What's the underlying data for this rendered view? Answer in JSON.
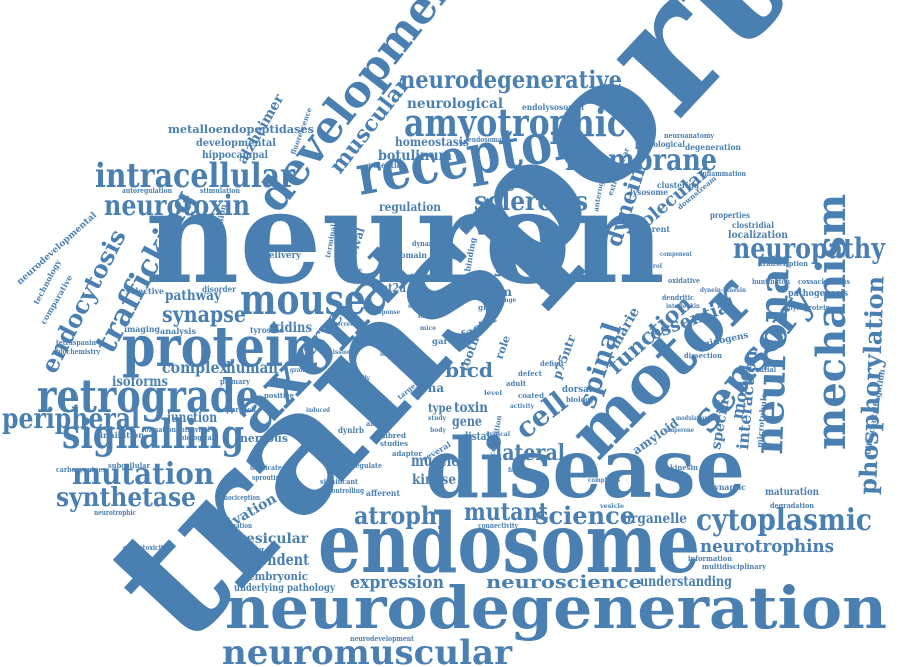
{
  "cloud": {
    "color": "#4a7fb1",
    "words": [
      {
        "text": "transport",
        "rank": 1
      },
      {
        "text": "neuron",
        "rank": 2
      },
      {
        "text": "disease",
        "rank": 3
      },
      {
        "text": "endosome",
        "rank": 4
      },
      {
        "text": "neurodegeneration",
        "rank": 5
      },
      {
        "text": "axonal",
        "rank": 6
      },
      {
        "text": "receptor",
        "rank": 7
      },
      {
        "text": "motor",
        "rank": 8
      },
      {
        "text": "development",
        "rank": 9
      },
      {
        "text": "protein",
        "rank": 10
      },
      {
        "text": "mouse",
        "rank": 11
      },
      {
        "text": "retrograde",
        "rank": 12
      },
      {
        "text": "amyotrophic",
        "rank": 13
      },
      {
        "text": "neuronal",
        "rank": 14
      },
      {
        "text": "mechanism",
        "rank": 15
      },
      {
        "text": "sensory",
        "rank": 16
      },
      {
        "text": "signalling",
        "rank": 17
      },
      {
        "text": "intracellular",
        "rank": 18
      },
      {
        "text": "neuromuscular",
        "rank": 19
      },
      {
        "text": "membrane",
        "rank": 20
      },
      {
        "text": "cytoplasmic",
        "rank": 21
      },
      {
        "text": "neuropathy",
        "rank": 22
      },
      {
        "text": "mutation",
        "rank": 23
      },
      {
        "text": "peripheral",
        "rank": 24
      },
      {
        "text": "neurotoxin",
        "rank": 25
      },
      {
        "text": "phosphorylation",
        "rank": 26
      },
      {
        "text": "trafficking",
        "rank": 27
      },
      {
        "text": "synthetase",
        "rank": 28
      },
      {
        "text": "neurodegenerative",
        "rank": 29
      },
      {
        "text": "sclerosis",
        "rank": 30
      },
      {
        "text": "endocytosis",
        "rank": 31
      },
      {
        "text": "muscular",
        "rank": 32
      },
      {
        "text": "spinal",
        "rank": 33
      },
      {
        "text": "dynein",
        "rank": 34
      },
      {
        "text": "cell",
        "rank": 35
      },
      {
        "text": "science",
        "rank": 36
      },
      {
        "text": "atrophy",
        "rank": 37
      },
      {
        "text": "mutant",
        "rank": 38
      },
      {
        "text": "neurotrophins",
        "rank": 39
      },
      {
        "text": "expression",
        "rank": 40
      },
      {
        "text": "neuroscience",
        "rank": 41
      },
      {
        "text": "function",
        "rank": 42
      },
      {
        "text": "synapse",
        "rank": 43
      },
      {
        "text": "lateral",
        "rank": 44
      },
      {
        "text": "dependent",
        "rank": 45
      },
      {
        "text": "nerve",
        "rank": 46
      },
      {
        "text": "activation",
        "rank": 47
      },
      {
        "text": "vesicular",
        "rank": 48
      },
      {
        "text": "molecular",
        "rank": 49
      },
      {
        "text": "essential",
        "rank": 50
      },
      {
        "text": "specific",
        "rank": 51
      },
      {
        "text": "model",
        "rank": 52
      },
      {
        "text": "interaction",
        "rank": 53
      },
      {
        "text": "complex",
        "rank": 54
      },
      {
        "text": "human",
        "rank": 55
      },
      {
        "text": "bicd",
        "rank": 56
      },
      {
        "text": "neurological",
        "rank": 57
      },
      {
        "text": "botulinum",
        "rank": 58
      },
      {
        "text": "homeostasis",
        "rank": 59
      },
      {
        "text": "understanding",
        "rank": 60
      },
      {
        "text": "organelle",
        "rank": 61
      },
      {
        "text": "muscle",
        "rank": 62
      },
      {
        "text": "toxin",
        "rank": 63
      },
      {
        "text": "gene",
        "rank": 64
      },
      {
        "text": "kinase",
        "rank": 65
      },
      {
        "text": "ganglion",
        "rank": 66
      },
      {
        "text": "regulation",
        "rank": 67
      },
      {
        "text": "pathway",
        "rank": 68
      },
      {
        "text": "isoforms",
        "rank": 69
      },
      {
        "text": "junction",
        "rank": 70
      },
      {
        "text": "alzheimer",
        "rank": 71
      },
      {
        "text": "kidins",
        "rank": 72
      },
      {
        "text": "system",
        "rank": 73
      },
      {
        "text": "factor",
        "rank": 74
      },
      {
        "text": "growth",
        "rank": 75
      },
      {
        "text": "cmt2d",
        "rank": 76
      },
      {
        "text": "survival",
        "rank": 77
      },
      {
        "text": "amyloid",
        "rank": 78
      },
      {
        "text": "marie",
        "rank": 79
      },
      {
        "text": "tooth",
        "rank": 80
      },
      {
        "text": "p75ntr",
        "rank": 81
      },
      {
        "text": "trna",
        "rank": 82
      },
      {
        "text": "nervous",
        "rank": 83
      },
      {
        "text": "embryonic",
        "rank": 84
      },
      {
        "text": "underlying",
        "rank": 85
      },
      {
        "text": "pathology",
        "rank": 86
      },
      {
        "text": "distal",
        "rank": 87
      },
      {
        "text": "type",
        "rank": 88
      },
      {
        "text": "role",
        "rank": 89
      },
      {
        "text": "metalloendopeptidases",
        "rank": 90
      },
      {
        "text": "developmental",
        "rank": 91
      },
      {
        "text": "hippocampal",
        "rank": 92
      },
      {
        "text": "endolysosomal",
        "rank": 93
      },
      {
        "text": "pathological",
        "rank": 94
      },
      {
        "text": "degeneration",
        "rank": 95
      },
      {
        "text": "lysosome",
        "rank": 96
      },
      {
        "text": "clustering",
        "rank": 97
      },
      {
        "text": "different",
        "rank": 98
      },
      {
        "text": "localization",
        "rank": 99
      },
      {
        "text": "properties",
        "rank": 100
      },
      {
        "text": "clostridial",
        "rank": 101
      },
      {
        "text": "transcription",
        "rank": 102
      },
      {
        "text": "pathogenesis",
        "rank": 103
      },
      {
        "text": "huntington",
        "rank": 104
      },
      {
        "text": "glycoprotein",
        "rank": 105
      },
      {
        "text": "coxsackievirus",
        "rank": 106
      },
      {
        "text": "dissection",
        "rank": 107
      },
      {
        "text": "nidogens",
        "rank": 108
      },
      {
        "text": "dendritic",
        "rank": 109
      },
      {
        "text": "oxidative",
        "rank": 110
      },
      {
        "text": "microtubule",
        "rank": 111
      },
      {
        "text": "ultracentrifugation",
        "rank": 112
      },
      {
        "text": "maturation",
        "rank": 113
      },
      {
        "text": "degradation",
        "rank": 114
      },
      {
        "text": "synaptic",
        "rank": 115
      },
      {
        "text": "multidisciplinary",
        "rank": 116
      },
      {
        "text": "information",
        "rank": 117
      },
      {
        "text": "neurodevelopment",
        "rank": 118
      },
      {
        "text": "neurotrophic",
        "rank": 119
      },
      {
        "text": "excitotoxicity",
        "rank": 120
      },
      {
        "text": "propagation",
        "rank": 121
      },
      {
        "text": "signaling",
        "rank": 122
      },
      {
        "text": "carbocyanines",
        "rank": 123
      },
      {
        "text": "subcellular",
        "rank": 124
      },
      {
        "text": "inhibition",
        "rank": 125
      },
      {
        "text": "formation",
        "rank": 126
      },
      {
        "text": "intravital",
        "rank": 127
      },
      {
        "text": "biological",
        "rank": 128
      },
      {
        "text": "tetraspanin",
        "rank": 129
      },
      {
        "text": "biochemistry",
        "rank": 130
      },
      {
        "text": "comparative",
        "rank": 131
      },
      {
        "text": "technology",
        "rank": 132
      },
      {
        "text": "neurodevelopmental",
        "rank": 133
      },
      {
        "text": "selective",
        "rank": 134
      },
      {
        "text": "imaging",
        "rank": 135
      },
      {
        "text": "analysis",
        "rank": 136
      },
      {
        "text": "tyrosine",
        "rank": 137
      },
      {
        "text": "disorder",
        "rank": 138
      },
      {
        "text": "delivery",
        "rank": 139
      },
      {
        "text": "transmission",
        "rank": 140
      },
      {
        "text": "autoregulation",
        "rank": 141
      },
      {
        "text": "stimulation",
        "rank": 142
      },
      {
        "text": "potential",
        "rank": 143
      },
      {
        "text": "endosomal",
        "rank": 144
      },
      {
        "text": "terminal",
        "rank": 145
      },
      {
        "text": "domain",
        "rank": 146
      },
      {
        "text": "binding",
        "rank": 147
      },
      {
        "text": "dynamic",
        "rank": 148
      },
      {
        "text": "primary",
        "rank": 149
      },
      {
        "text": "approach",
        "rank": 150
      },
      {
        "text": "positive",
        "rank": 151
      },
      {
        "text": "dynlrb",
        "rank": 152
      },
      {
        "text": "regulate",
        "rank": 153
      },
      {
        "text": "adaptor",
        "rank": 154
      },
      {
        "text": "studies",
        "rank": 155
      },
      {
        "text": "animal",
        "rank": 156
      },
      {
        "text": "inbred",
        "rank": 157
      },
      {
        "text": "afferent",
        "rank": 158
      },
      {
        "text": "several",
        "rank": 159
      },
      {
        "text": "significant",
        "rank": 160
      },
      {
        "text": "controlling",
        "rank": 161
      },
      {
        "text": "duplicated",
        "rank": 162
      },
      {
        "text": "sprouting",
        "rank": 163
      },
      {
        "text": "nociception",
        "rank": 164
      },
      {
        "text": "fluorescence",
        "rank": 165
      },
      {
        "text": "connectivity",
        "rank": 166
      },
      {
        "text": "concentration",
        "rank": 167
      },
      {
        "text": "kinesin",
        "rank": 168
      },
      {
        "text": "coated",
        "rank": 169
      },
      {
        "text": "deficit",
        "rank": 170
      },
      {
        "text": "defect",
        "rank": 171
      },
      {
        "text": "adult",
        "rank": 172
      },
      {
        "text": "dorsal",
        "rank": 173
      },
      {
        "text": "biology",
        "rank": 174
      },
      {
        "text": "differential",
        "rank": 175
      },
      {
        "text": "anterograde",
        "rank": 176
      },
      {
        "text": "downstream",
        "rank": 177
      },
      {
        "text": "inflammation",
        "rank": 178
      },
      {
        "text": "neuroanatomy",
        "rank": 179
      },
      {
        "text": "extracellular",
        "rank": 180
      },
      {
        "text": "glycerol",
        "rank": 181
      },
      {
        "text": "interleukin",
        "rank": 182
      },
      {
        "text": "dynein-kinesin",
        "rank": 183
      },
      {
        "text": "complexes",
        "rank": 184
      },
      {
        "text": "critical",
        "rank": 185
      },
      {
        "text": "finding",
        "rank": 186
      },
      {
        "text": "vesicle",
        "rank": 187
      },
      {
        "text": "chaperone",
        "rank": 188
      },
      {
        "text": "modulation",
        "rank": 189
      },
      {
        "text": "range",
        "rank": 190
      },
      {
        "text": "glyrs",
        "rank": 191
      },
      {
        "text": "mice",
        "rank": 192
      },
      {
        "text": "channel",
        "rank": 193
      },
      {
        "text": "target",
        "rank": 194
      },
      {
        "text": "study",
        "rank": 195
      },
      {
        "text": "body",
        "rank": 196
      },
      {
        "text": "result",
        "rank": 197
      },
      {
        "text": "level",
        "rank": 198
      },
      {
        "text": "gar",
        "rank": 199
      },
      {
        "text": "basic",
        "rank": 200
      },
      {
        "text": "tissue",
        "rank": 201
      },
      {
        "text": "family",
        "rank": 202
      },
      {
        "text": "identity",
        "rank": 203
      },
      {
        "text": "activity",
        "rank": 204
      },
      {
        "text": "soluble",
        "rank": 205
      },
      {
        "text": "granule",
        "rank": 206
      },
      {
        "text": "induced",
        "rank": 207
      },
      {
        "text": "response",
        "rank": 208
      },
      {
        "text": "multivalent",
        "rank": 209
      },
      {
        "text": "sorting",
        "rank": 210
      },
      {
        "text": "component",
        "rank": 211
      },
      {
        "text": "secretion",
        "rank": 212
      }
    ]
  }
}
